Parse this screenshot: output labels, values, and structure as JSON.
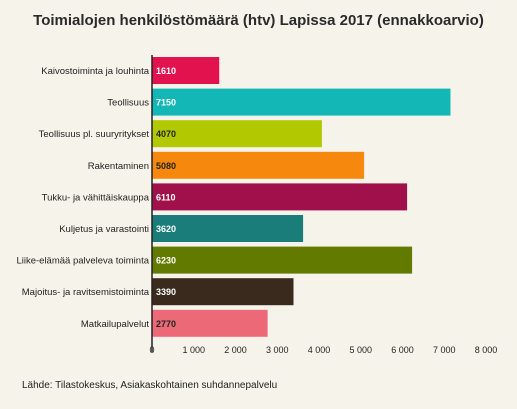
{
  "title": "Toimialojen henkilöstömäärä (htv) Lapissa 2017 (ennakkoarvio)",
  "source": "Lähde: Tilastokeskus, Asiakaskohtainen suhdannepalvelu",
  "chart_data": {
    "type": "bar",
    "orientation": "horizontal",
    "title": "Toimialojen henkilöstömäärä (htv) Lapissa 2017 (ennakkoarvio)",
    "categories": [
      "Kaivostoiminta ja louhinta",
      "Teollisuus",
      "Teollisuus pl. suuryritykset",
      "Rakentaminen",
      "Tukku- ja vähittäiskauppa",
      "Kuljetus ja varastointi",
      "Liike-elämää palveleva toiminta",
      "Majoitus- ja ravitsemistoiminta",
      "Matkailupalvelut"
    ],
    "values": [
      1610,
      7150,
      4070,
      5080,
      6110,
      3620,
      6230,
      3390,
      2770
    ],
    "value_labels": [
      "1610",
      "7150",
      "4070",
      "5080",
      "6110",
      "3620",
      "6230",
      "3390",
      "2770"
    ],
    "colors": [
      "#e2124f",
      "#13b7b5",
      "#b2c800",
      "#f5880d",
      "#a0104a",
      "#1b7d7a",
      "#627a00",
      "#3a2a1e",
      "#ec6a78"
    ],
    "label_colors": [
      "#ffffff",
      "#ffffff",
      "#222222",
      "#222222",
      "#ffffff",
      "#ffffff",
      "#ffffff",
      "#ffffff",
      "#222222"
    ],
    "xlim": [
      0,
      8000
    ],
    "xticks": [
      0,
      1000,
      2000,
      3000,
      4000,
      5000,
      6000,
      7000,
      8000
    ],
    "xtick_labels": [
      "0",
      "1 000",
      "2 000",
      "3 000",
      "4 000",
      "5 000",
      "6 000",
      "7 000",
      "8 000"
    ],
    "grid": false,
    "legend": "none"
  }
}
